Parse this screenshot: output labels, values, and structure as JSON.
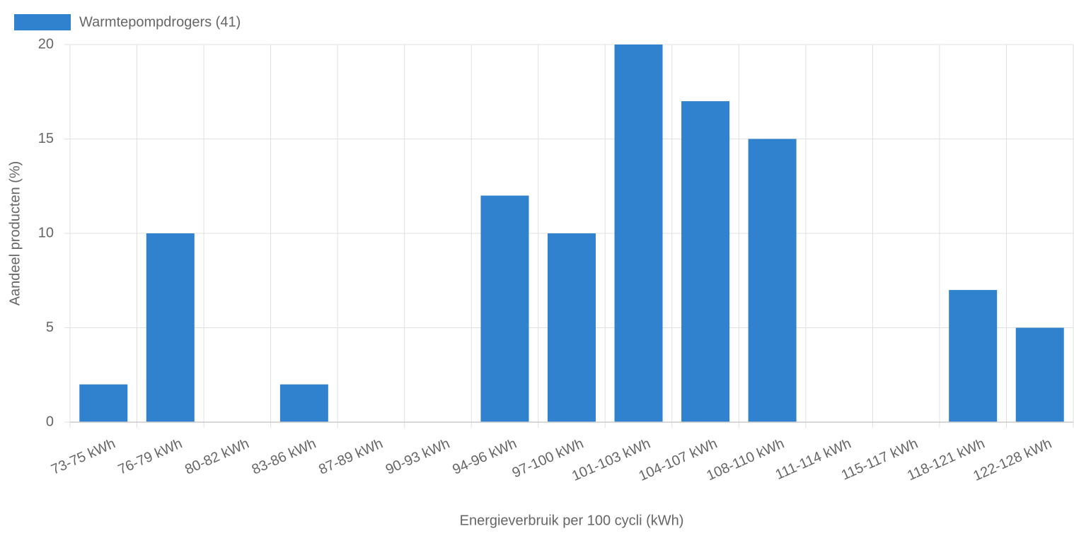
{
  "chart_data": {
    "type": "bar",
    "x_label": "Energieverbruik per 100 cycli (kWh)",
    "y_label": "Aandeel producten (%)",
    "categories": [
      "73-75 kWh",
      "76-79 kWh",
      "80-82 kWh",
      "83-86 kWh",
      "87-89 kWh",
      "90-93 kWh",
      "94-96 kWh",
      "97-100 kWh",
      "101-103 kWh",
      "104-107 kWh",
      "108-110 kWh",
      "111-114 kWh",
      "115-117 kWh",
      "118-121 kWh",
      "122-128 kWh"
    ],
    "series": [
      {
        "name": "Warmtepompdrogers (41)",
        "color": "#3182ce",
        "values": [
          2,
          10,
          0,
          2,
          0,
          0,
          12,
          10,
          20,
          17,
          15,
          0,
          0,
          7,
          5
        ]
      }
    ],
    "ylim": [
      0,
      20
    ],
    "yticks": [
      0,
      5,
      10,
      15,
      20
    ],
    "grid": true,
    "legend": "top-left"
  }
}
